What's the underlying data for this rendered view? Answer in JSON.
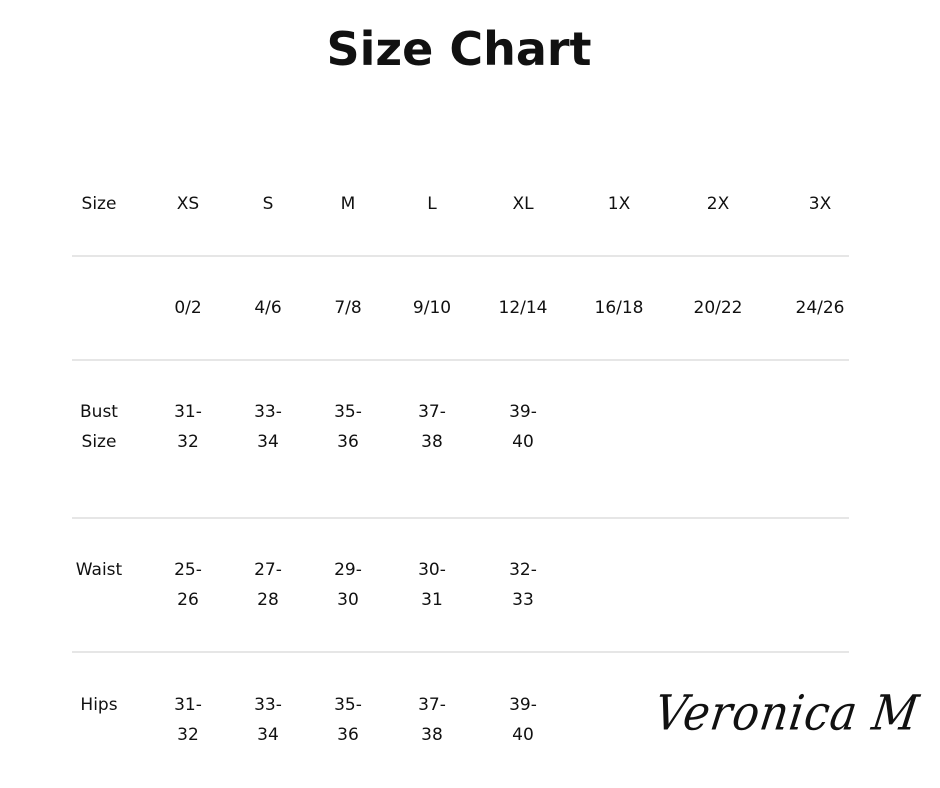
{
  "title": "Size Chart",
  "columns": [
    "Size",
    "XS",
    "S",
    "M",
    "L",
    "XL",
    "1X",
    "2X",
    "3X"
  ],
  "rows": [
    {
      "label": [
        ""
      ],
      "values": [
        [
          "0/2"
        ],
        [
          "4/6"
        ],
        [
          "7/8"
        ],
        [
          "9/10"
        ],
        [
          "12/14"
        ],
        [
          "16/18"
        ],
        [
          "20/22"
        ],
        [
          "24/26"
        ]
      ]
    },
    {
      "label": [
        "Bust",
        "Size"
      ],
      "values": [
        [
          "31-",
          "32"
        ],
        [
          "33-",
          "34"
        ],
        [
          "35-",
          "36"
        ],
        [
          "37-",
          "38"
        ],
        [
          "39-",
          "40"
        ],
        [],
        [],
        []
      ]
    },
    {
      "label": [
        "Waist"
      ],
      "values": [
        [
          "25-",
          "26"
        ],
        [
          "27-",
          "28"
        ],
        [
          "29-",
          "30"
        ],
        [
          "30-",
          "31"
        ],
        [
          "32-",
          "33"
        ],
        [],
        [],
        []
      ]
    },
    {
      "label": [
        "Hips"
      ],
      "values": [
        [
          "31-",
          "32"
        ],
        [
          "33-",
          "34"
        ],
        [
          "35-",
          "36"
        ],
        [
          "37-",
          "38"
        ],
        [
          "39-",
          "40"
        ],
        [],
        [],
        []
      ]
    }
  ],
  "brand": "Veronica M"
}
